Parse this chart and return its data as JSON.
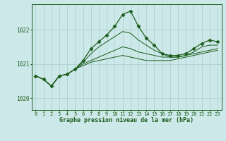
{
  "background_color": "#cce8e8",
  "grid_color": "#aacccc",
  "line_color": "#1a5c1a",
  "title": "Graphe pression niveau de la mer (hPa)",
  "xlabel_ticks": [
    0,
    1,
    2,
    3,
    4,
    5,
    6,
    7,
    8,
    9,
    10,
    11,
    12,
    13,
    14,
    15,
    16,
    17,
    18,
    19,
    20,
    21,
    22,
    23
  ],
  "yticks": [
    1020,
    1021,
    1022
  ],
  "ylim": [
    1019.65,
    1022.75
  ],
  "xlim": [
    -0.5,
    23.5
  ],
  "series": [
    [
      1020.65,
      1020.55,
      1020.35,
      1020.65,
      1020.7,
      1020.85,
      1021.1,
      1021.45,
      1021.65,
      1021.85,
      1022.1,
      1022.45,
      1022.55,
      1022.1,
      1021.75,
      1021.55,
      1021.3,
      1021.25,
      1021.25,
      1021.3,
      1021.45,
      1021.6,
      1021.7,
      1021.65
    ],
    [
      1020.65,
      1020.55,
      1020.35,
      1020.65,
      1020.7,
      1020.85,
      1021.05,
      1021.3,
      1021.5,
      1021.65,
      1021.8,
      1021.95,
      1021.9,
      1021.7,
      1021.55,
      1021.4,
      1021.3,
      1021.2,
      1021.2,
      1021.25,
      1021.35,
      1021.5,
      1021.55,
      1021.55
    ],
    [
      1020.65,
      1020.55,
      1020.35,
      1020.65,
      1020.7,
      1020.85,
      1021.0,
      1021.1,
      1021.2,
      1021.3,
      1021.4,
      1021.5,
      1021.45,
      1021.35,
      1021.3,
      1021.25,
      1021.2,
      1021.2,
      1021.2,
      1021.25,
      1021.3,
      1021.35,
      1021.4,
      1021.45
    ],
    [
      1020.65,
      1020.55,
      1020.35,
      1020.65,
      1020.7,
      1020.85,
      1020.95,
      1021.05,
      1021.1,
      1021.15,
      1021.2,
      1021.25,
      1021.2,
      1021.15,
      1021.1,
      1021.1,
      1021.1,
      1021.1,
      1021.15,
      1021.2,
      1021.25,
      1021.3,
      1021.35,
      1021.4
    ]
  ],
  "marker": "D",
  "marker_size": 2.5,
  "linewidth_main": 0.9,
  "linewidth_other": 0.7
}
